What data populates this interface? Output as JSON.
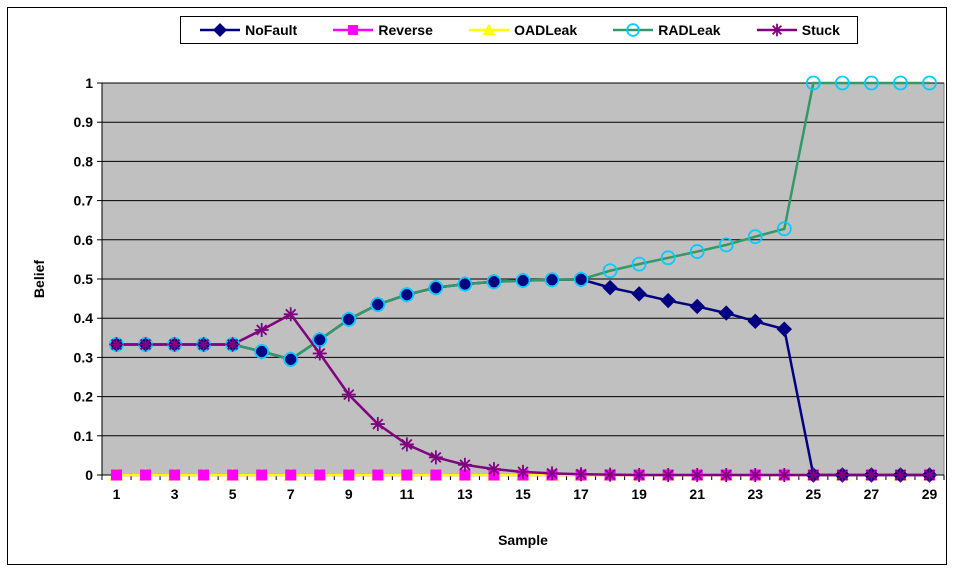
{
  "chart_data": {
    "type": "line",
    "title": "",
    "xlabel": "Sample",
    "ylabel": "Belief",
    "ylim": [
      0,
      1
    ],
    "grid": true,
    "legend_position": "top",
    "x": [
      1,
      2,
      3,
      4,
      5,
      6,
      7,
      8,
      9,
      10,
      11,
      12,
      13,
      14,
      15,
      16,
      17,
      18,
      19,
      20,
      21,
      22,
      23,
      24,
      25,
      26,
      27,
      28,
      29
    ],
    "x_tick_labels": [
      "1",
      "3",
      "5",
      "7",
      "9",
      "11",
      "13",
      "15",
      "17",
      "19",
      "21",
      "23",
      "25",
      "27",
      "29"
    ],
    "y_tick_labels": [
      "0",
      "0.1",
      "0.2",
      "0.3",
      "0.4",
      "0.5",
      "0.6",
      "0.7",
      "0.8",
      "0.9",
      "1"
    ],
    "series": [
      {
        "name": "NoFault",
        "color": "#000080",
        "marker": "diamond",
        "values": [
          0.333,
          0.333,
          0.333,
          0.333,
          0.333,
          0.315,
          0.295,
          0.345,
          0.397,
          0.435,
          0.46,
          0.478,
          0.487,
          0.493,
          0.496,
          0.498,
          0.499,
          0.478,
          0.462,
          0.445,
          0.43,
          0.413,
          0.392,
          0.372,
          0.0,
          0.0,
          0.0,
          0.0,
          0.0
        ]
      },
      {
        "name": "Reverse",
        "color": "#FF00FF",
        "marker": "square",
        "values": [
          0,
          0,
          0,
          0,
          0,
          0,
          0,
          0,
          0,
          0,
          0,
          0,
          0,
          0,
          0,
          0,
          0,
          0,
          0,
          0,
          0,
          0,
          0,
          0,
          0,
          0,
          0,
          0,
          0
        ]
      },
      {
        "name": "OADLeak",
        "color": "#FFFF00",
        "marker": "triangle",
        "values": [
          0,
          0,
          0,
          0,
          0,
          0,
          0,
          0,
          0,
          0,
          0,
          0,
          0,
          0,
          0,
          0,
          0,
          0,
          0,
          0,
          0,
          0,
          0,
          0,
          0,
          0,
          0,
          0,
          0
        ]
      },
      {
        "name": "RADLeak",
        "color": "#339966",
        "marker": "circle",
        "marker_color": "#00CCFF",
        "values": [
          0.333,
          0.333,
          0.333,
          0.333,
          0.333,
          0.315,
          0.295,
          0.345,
          0.397,
          0.435,
          0.46,
          0.478,
          0.487,
          0.493,
          0.496,
          0.498,
          0.499,
          0.521,
          0.538,
          0.554,
          0.57,
          0.587,
          0.608,
          0.628,
          1.0,
          1.0,
          1.0,
          1.0,
          1.0
        ]
      },
      {
        "name": "Stuck",
        "color": "#800080",
        "marker": "star",
        "values": [
          0.333,
          0.333,
          0.333,
          0.333,
          0.333,
          0.37,
          0.41,
          0.31,
          0.205,
          0.13,
          0.078,
          0.045,
          0.026,
          0.015,
          0.008,
          0.004,
          0.002,
          0.001,
          0.0,
          0.0,
          0.0,
          0.0,
          0.0,
          0.0,
          0.0,
          0.0,
          0.0,
          0.0,
          0.0
        ]
      }
    ]
  }
}
